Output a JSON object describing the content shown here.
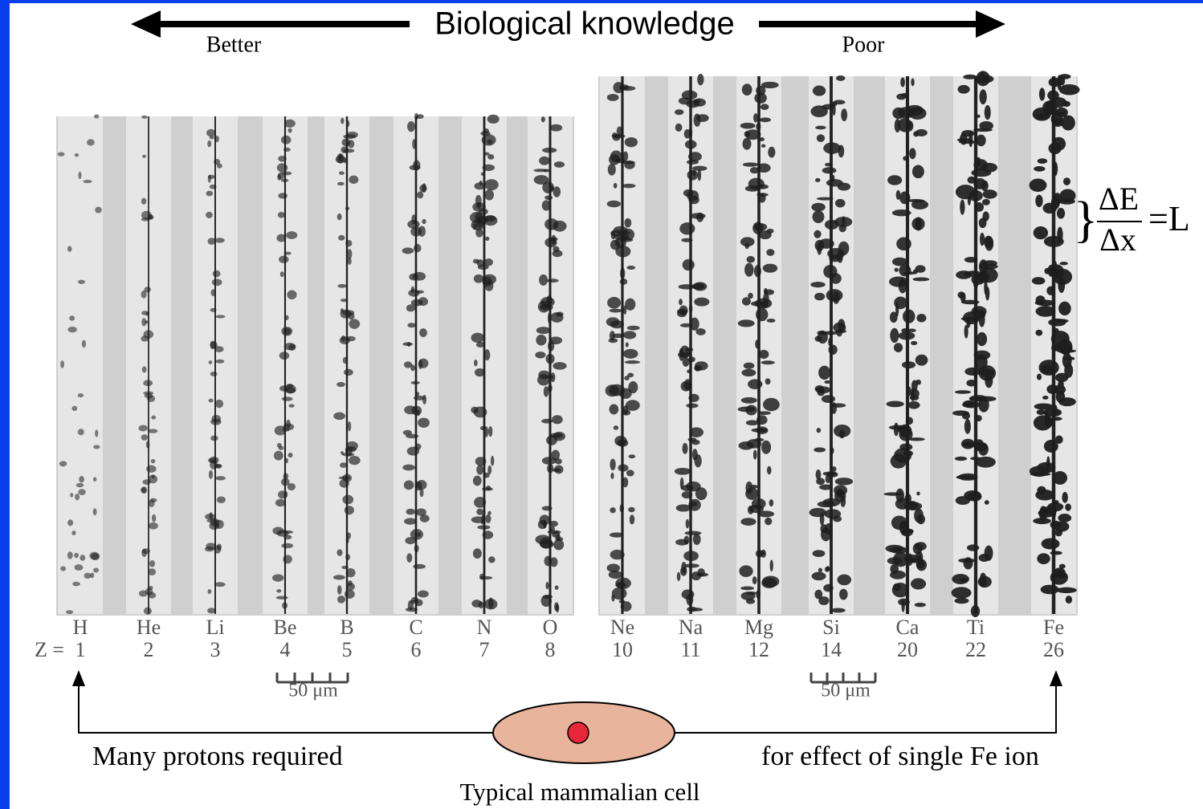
{
  "header": {
    "title": "Biological knowledge",
    "left_label": "Better",
    "right_label": "Poor"
  },
  "z_prefix": "Z =",
  "left_tracks": [
    {
      "symbol": "H",
      "z": 1
    },
    {
      "symbol": "He",
      "z": 2
    },
    {
      "symbol": "Li",
      "z": 3
    },
    {
      "symbol": "Be",
      "z": 4
    },
    {
      "symbol": "B",
      "z": 5
    },
    {
      "symbol": "C",
      "z": 6
    },
    {
      "symbol": "N",
      "z": 7
    },
    {
      "symbol": "O",
      "z": 8
    }
  ],
  "right_tracks": [
    {
      "symbol": "Ne",
      "z": 10
    },
    {
      "symbol": "Na",
      "z": 11
    },
    {
      "symbol": "Mg",
      "z": 12
    },
    {
      "symbol": "Si",
      "z": 14
    },
    {
      "symbol": "Ca",
      "z": 20
    },
    {
      "symbol": "Ti",
      "z": 22
    },
    {
      "symbol": "Fe",
      "z": 26
    }
  ],
  "scale_bars": [
    "50 μm",
    "50 μm"
  ],
  "formula": {
    "numerator": "ΔE",
    "denominator": "Δx",
    "result": "=L"
  },
  "footer": {
    "left_text": "Many protons required",
    "right_text": "for effect of single Fe ion",
    "cell_label": "Typical mammalian cell"
  }
}
